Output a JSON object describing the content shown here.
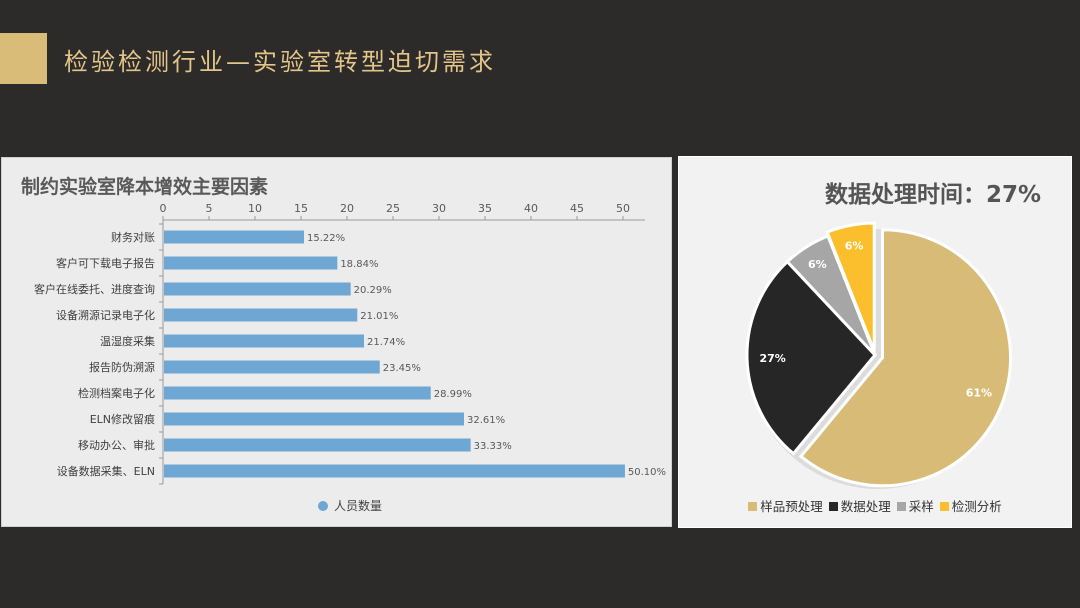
{
  "slide": {
    "title": "检验检测行业—实验室转型迫切需求",
    "accent_color": "#d9bc78"
  },
  "chart_data": [
    {
      "type": "bar",
      "orientation": "horizontal",
      "title": "制约实验室降本增效主要因素",
      "categories": [
        "财务对账",
        "客户可下载电子报告",
        "客户在线委托、进度查询",
        "设备溯源记录电子化",
        "温湿度采集",
        "报告防伪溯源",
        "检测档案电子化",
        "ELN修改留痕",
        "移动办公、审批",
        "设备数据采集、ELN"
      ],
      "series": [
        {
          "name": "人员数量",
          "values": [
            15.22,
            18.84,
            20.29,
            21.01,
            21.74,
            23.45,
            28.99,
            32.61,
            33.33,
            50.1
          ],
          "color": "#6ea6d4"
        }
      ],
      "value_labels": [
        "15.22%",
        "18.84%",
        "20.29%",
        "21.01%",
        "21.74%",
        "23.45%",
        "28.99%",
        "32.61%",
        "33.33%",
        "50.10%"
      ],
      "xlim": [
        0,
        50
      ],
      "xticks": [
        0,
        5,
        10,
        15,
        20,
        25,
        30,
        35,
        40,
        45,
        50
      ],
      "axis_position": "top",
      "legend": "bottom"
    },
    {
      "type": "pie",
      "title": "数据处理时间：27%",
      "categories": [
        "样品预处理",
        "数据处理",
        "采样",
        "检测分析"
      ],
      "values": [
        61,
        27,
        6,
        6
      ],
      "value_labels": [
        "61%",
        "27%",
        "6%",
        "6%"
      ],
      "colors": [
        "#d9bb78",
        "#262626",
        "#a6a6a6",
        "#fbbf2d"
      ],
      "label_colors": [
        "#ffffff",
        "#ffffff",
        "#ffffff",
        "#ffffff"
      ],
      "legend": "bottom"
    }
  ]
}
